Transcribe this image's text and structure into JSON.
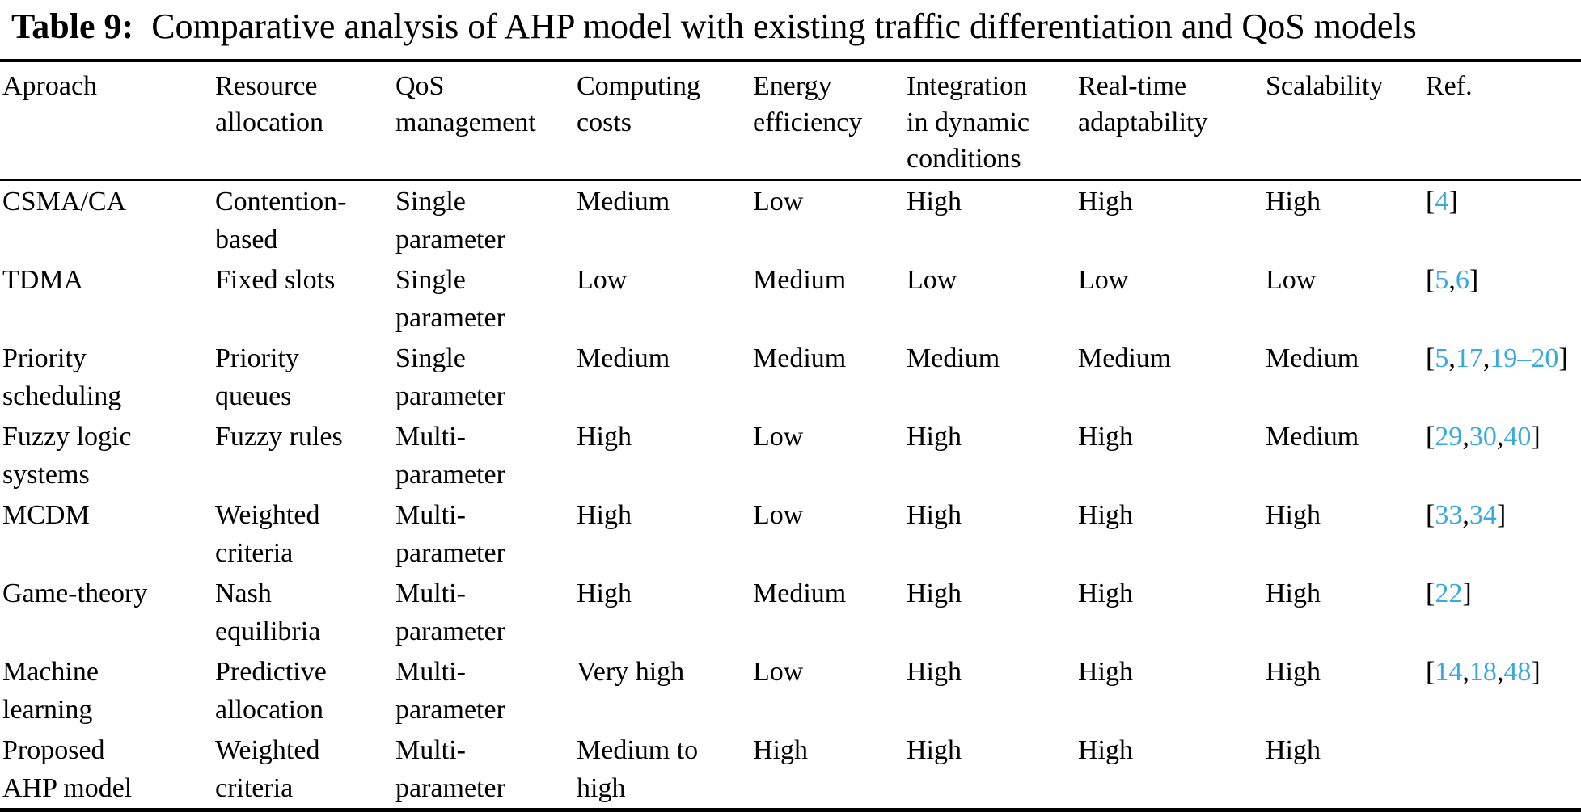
{
  "title": {
    "label": "Table 9:",
    "text": "Comparative analysis of AHP model with existing traffic differentiation and QoS models"
  },
  "colors": {
    "text": "#000000",
    "citation_link": "#3aa9dc",
    "rule": "#000000",
    "background": "#ffffff"
  },
  "table": {
    "headers": [
      "Aproach",
      "Resource\nallocation",
      "QoS\nmanagement",
      "Computing\ncosts",
      "Energy\nefficiency",
      "Integration\nin dynamic\nconditions",
      "Real-time\nadaptability",
      "Scalability",
      "Ref."
    ],
    "rows": [
      {
        "cells": [
          "CSMA/CA",
          "Contention-\nbased",
          "Single\nparameter",
          "Medium",
          "Low",
          "High",
          "High",
          "High"
        ],
        "ref": [
          {
            "t": "["
          },
          {
            "t": "4",
            "l": true
          },
          {
            "t": "]"
          }
        ]
      },
      {
        "cells": [
          "TDMA",
          "Fixed slots",
          "Single\nparameter",
          "Low",
          "Medium",
          "Low",
          "Low",
          "Low"
        ],
        "ref": [
          {
            "t": "["
          },
          {
            "t": "5",
            "l": true
          },
          {
            "t": ","
          },
          {
            "t": "6",
            "l": true
          },
          {
            "t": "]"
          }
        ]
      },
      {
        "cells": [
          "Priority\nscheduling",
          "Priority\nqueues",
          "Single\nparameter",
          "Medium",
          "Medium",
          "Medium",
          "Medium",
          "Medium"
        ],
        "ref": [
          {
            "t": "["
          },
          {
            "t": "5",
            "l": true
          },
          {
            "t": ","
          },
          {
            "t": "17",
            "l": true
          },
          {
            "t": ","
          },
          {
            "t": "19–20",
            "l": true
          },
          {
            "t": "]"
          }
        ]
      },
      {
        "cells": [
          "Fuzzy logic\nsystems",
          "Fuzzy rules",
          "Multi-\nparameter",
          "High",
          "Low",
          "High",
          "High",
          "Medium"
        ],
        "ref": [
          {
            "t": "["
          },
          {
            "t": "29",
            "l": true
          },
          {
            "t": ","
          },
          {
            "t": "30",
            "l": true
          },
          {
            "t": ","
          },
          {
            "t": "40",
            "l": true
          },
          {
            "t": "]"
          }
        ]
      },
      {
        "cells": [
          "MCDM",
          "Weighted\ncriteria",
          "Multi-\nparameter",
          "High",
          "Low",
          "High",
          "High",
          "High"
        ],
        "ref": [
          {
            "t": "["
          },
          {
            "t": "33",
            "l": true
          },
          {
            "t": ","
          },
          {
            "t": "34",
            "l": true
          },
          {
            "t": "]"
          }
        ]
      },
      {
        "cells": [
          "Game-theory",
          "Nash\nequilibria",
          "Multi-\nparameter",
          "High",
          "Medium",
          "High",
          "High",
          "High"
        ],
        "ref": [
          {
            "t": "["
          },
          {
            "t": "22",
            "l": true
          },
          {
            "t": "]"
          }
        ]
      },
      {
        "cells": [
          "Machine\nlearning",
          "Predictive\nallocation",
          "Multi-\nparameter",
          "Very high",
          "Low",
          "High",
          "High",
          "High"
        ],
        "ref": [
          {
            "t": "["
          },
          {
            "t": "14",
            "l": true
          },
          {
            "t": ","
          },
          {
            "t": "18",
            "l": true
          },
          {
            "t": ","
          },
          {
            "t": "48",
            "l": true
          },
          {
            "t": "]"
          }
        ]
      },
      {
        "cells": [
          "Proposed\nAHP model",
          "Weighted\ncriteria",
          "Multi-\nparameter",
          "Medium to\nhigh",
          "High",
          "High",
          "High",
          "High"
        ],
        "ref": []
      }
    ]
  }
}
